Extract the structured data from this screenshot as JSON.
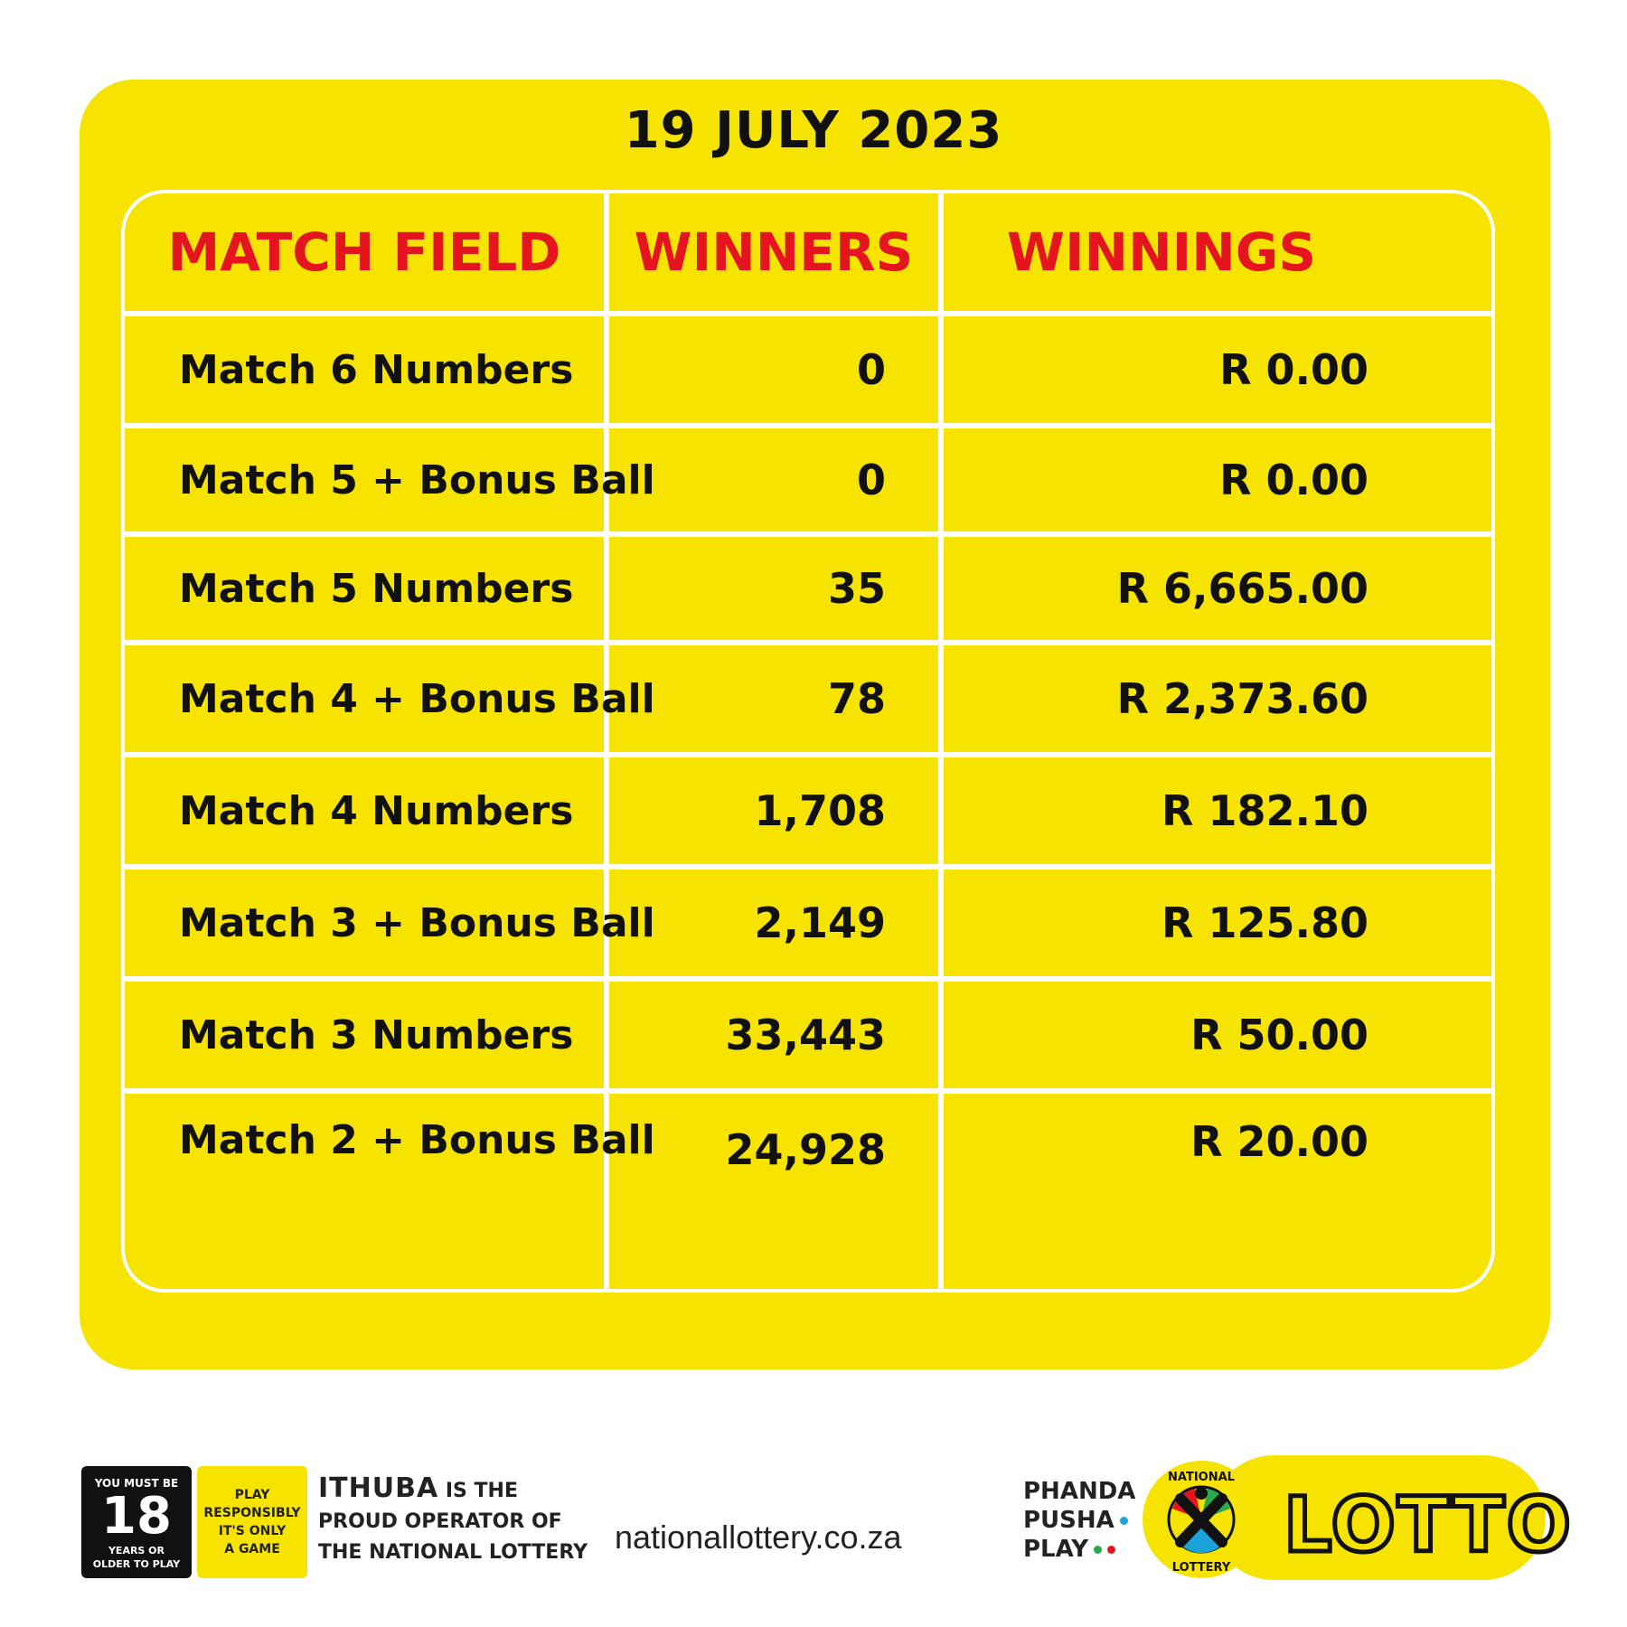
{
  "date": "19 JULY 2023",
  "headers": {
    "match_field": "MATCH FIELD",
    "winners": "WINNERS",
    "winnings": "WINNINGS"
  },
  "rows": [
    {
      "field": "Match 6 Numbers",
      "winners": "0",
      "winnings": "R 0.00"
    },
    {
      "field": "Match 5 + Bonus Ball",
      "winners": "0",
      "winnings": "R 0.00"
    },
    {
      "field": "Match 5 Numbers",
      "winners": "35",
      "winnings": "R 6,665.00"
    },
    {
      "field": "Match 4  + Bonus Ball",
      "winners": "78",
      "winnings": "R 2,373.60"
    },
    {
      "field": "Match 4 Numbers",
      "winners": "1,708",
      "winnings": "R 182.10"
    },
    {
      "field": "Match 3 + Bonus Ball",
      "winners": "2,149",
      "winnings": "R 125.80"
    },
    {
      "field": "Match 3 Numbers",
      "winners": "33,443",
      "winnings": "R 50.00"
    },
    {
      "field": "Match 2 + Bonus Ball",
      "winners": "24,928",
      "winnings": "R 20.00"
    }
  ],
  "footer": {
    "age": {
      "top": "YOU MUST BE",
      "number": "18",
      "bottom1": "YEARS OR",
      "bottom2": "OLDER TO PLAY"
    },
    "responsible": [
      "PLAY",
      "RESPONSIBLY",
      "IT'S ONLY",
      "A GAME"
    ],
    "operator": {
      "brand": "ITHUBA",
      "line1_rest": " IS THE",
      "line2": "PROUD OPERATOR OF",
      "line3": "THE NATIONAL LOTTERY"
    },
    "url": "nationallottery.co.za",
    "slogan": [
      "PHANDA",
      "PUSHA",
      "PLAY"
    ],
    "emblem_text": {
      "top": "NATIONAL",
      "bottom": "LOTTERY"
    },
    "logo": "LOTTO"
  },
  "colors": {
    "background_yellow": "#f7e300",
    "header_red": "#e4151f",
    "text_dark": "#111111"
  }
}
